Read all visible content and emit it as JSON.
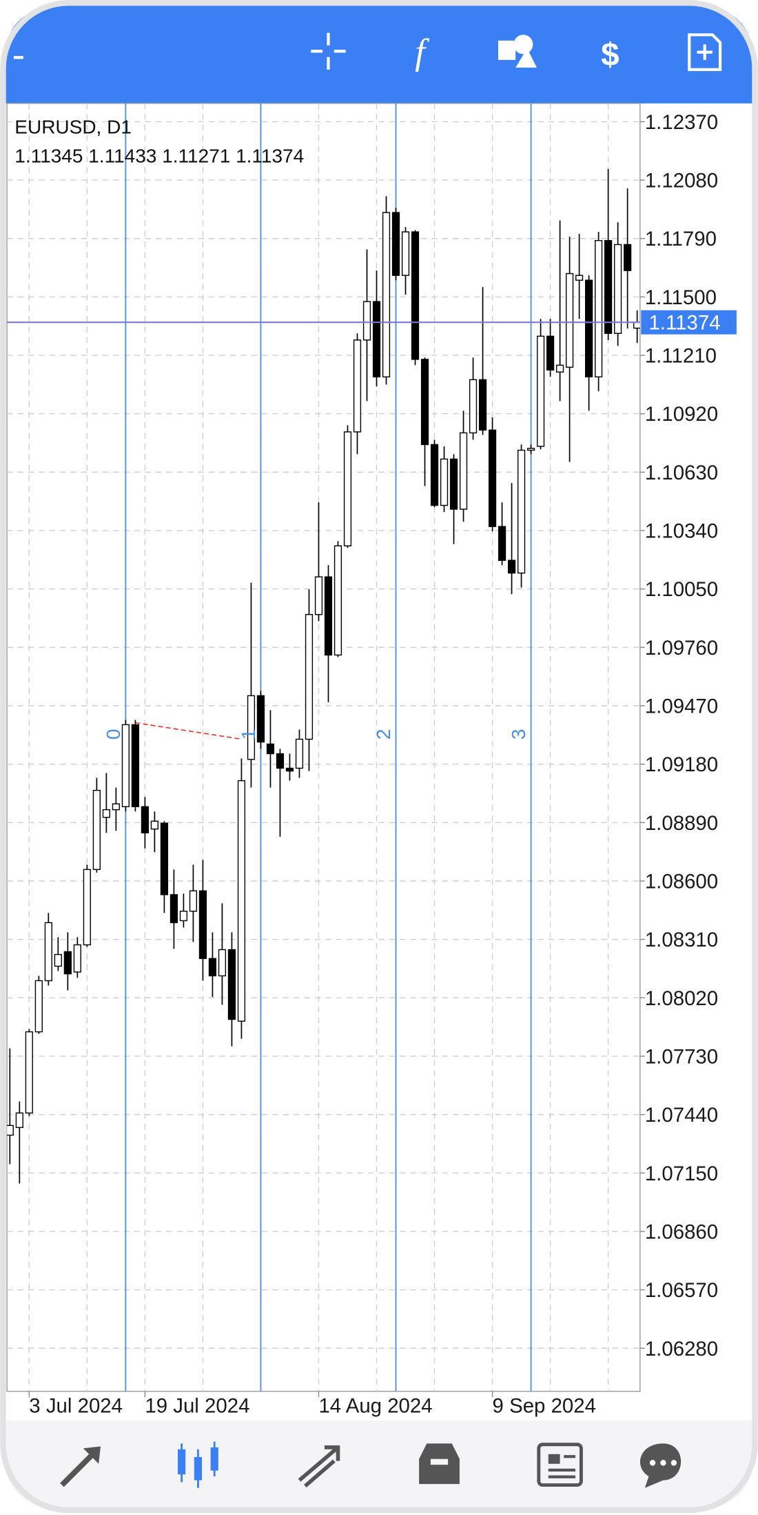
{
  "chart_data": {
    "type": "candlestick",
    "title": "EURUSD, D1",
    "categories": [
      null,
      null,
      "3 Jul 2024",
      null,
      null,
      null,
      null,
      null,
      null,
      null,
      null,
      null,
      null,
      null,
      "19 Jul 2024",
      null,
      null,
      null,
      null,
      null,
      null,
      null,
      null,
      null,
      null,
      null,
      null,
      null,
      null,
      null,
      null,
      null,
      "14 Aug 2024",
      null,
      null,
      null,
      null,
      null,
      null,
      null,
      null,
      null,
      null,
      null,
      null,
      null,
      null,
      null,
      null,
      null,
      "9 Sep 2024",
      null,
      null,
      null,
      null,
      null,
      null,
      null,
      null,
      null,
      null,
      null,
      null,
      null,
      null,
      null
    ],
    "open": [
      1.07338,
      1.07376,
      1.07448,
      1.07851,
      1.08105,
      1.08177,
      1.08249,
      1.08148,
      1.08283,
      1.08657,
      1.08916,
      1.08954,
      1.08969,
      1.09376,
      1.08969,
      1.08858,
      1.08887,
      1.08532,
      1.08403,
      1.0845,
      1.08551,
      1.08215,
      1.08129,
      1.08259,
      1.07904,
      1.09204,
      1.0952,
      1.0928,
      1.09232,
      1.0916,
      1.0916,
      1.09304,
      1.09923,
      1.1011,
      1.09722,
      1.10264,
      1.1083,
      1.11286,
      1.11477,
      1.11103,
      1.11919,
      1.11607,
      1.11823,
      1.1119,
      1.10767,
      1.10465,
      1.10695,
      1.10446,
      1.10825,
      1.11089,
      1.10839,
      1.1036,
      1.10192,
      1.10129,
      1.10739,
      1.10758,
      1.11305,
      1.11127,
      1.11151,
      1.11583,
      1.11583,
      1.11103,
      1.1178,
      1.11319,
      1.1176,
      1.11345
    ],
    "high": [
      1.07769,
      1.07505,
      1.07865,
      1.08129,
      1.08441,
      1.08321,
      1.08345,
      1.08321,
      1.08681,
      1.09112,
      1.09136,
      1.09064,
      1.094,
      1.094,
      1.09017,
      1.08945,
      1.08897,
      1.08657,
      1.08537,
      1.08681,
      1.08705,
      1.08345,
      1.08489,
      1.08345,
      1.09208,
      1.10081,
      1.09544,
      1.09448,
      1.09256,
      1.09232,
      1.09352,
      1.10048,
      1.1048,
      1.10168,
      1.10288,
      1.10863,
      1.11319,
      1.11736,
      1.11631,
      1.12,
      1.11943,
      1.11847,
      1.11832,
      1.11199,
      1.10791,
      1.10758,
      1.10719,
      1.10935,
      1.11199,
      1.11549,
      1.10902,
      1.1048,
      1.10576,
      1.10767,
      1.10767,
      1.11391,
      1.11391,
      1.1188,
      1.11799,
      1.11813,
      1.11607,
      1.11823,
      1.12135,
      1.11871,
      1.12039,
      1.11433
    ],
    "low": [
      1.07194,
      1.07098,
      1.07433,
      1.07841,
      1.08081,
      1.08153,
      1.08057,
      1.08119,
      1.08273,
      1.08642,
      1.08839,
      1.08849,
      1.08945,
      1.08945,
      1.08762,
      1.08743,
      1.08441,
      1.08263,
      1.08369,
      1.08297,
      1.08105,
      1.08024,
      1.07985,
      1.07779,
      1.07817,
      1.09064,
      1.09256,
      1.09064,
      1.0882,
      1.09098,
      1.09112,
      1.09146,
      1.0989,
      1.09487,
      1.09712,
      1.10254,
      1.10719,
      1.10983,
      1.11055,
      1.11065,
      1.11583,
      1.11511,
      1.11161,
      1.10561,
      1.10456,
      1.10432,
      1.10273,
      1.10384,
      1.10791,
      1.10815,
      1.10336,
      1.10168,
      1.10024,
      1.10057,
      1.10719,
      1.10743,
      1.11103,
      1.10983,
      1.10681,
      1.11391,
      1.10935,
      1.11031,
      1.11286,
      1.11257,
      1.11343,
      1.11271
    ],
    "close": [
      1.07386,
      1.07448,
      1.07851,
      1.08105,
      1.08393,
      1.08235,
      1.08139,
      1.08283,
      1.08657,
      1.0905,
      1.08954,
      1.08983,
      1.09376,
      1.08969,
      1.08839,
      1.08897,
      1.08532,
      1.08393,
      1.0845,
      1.08551,
      1.08215,
      1.08129,
      1.08259,
      1.07913,
      1.09098,
      1.0952,
      1.0929,
      1.09232,
      1.0916,
      1.09146,
      1.09304,
      1.09923,
      1.1011,
      1.09722,
      1.10264,
      1.1083,
      1.11286,
      1.11477,
      1.11103,
      1.11919,
      1.11607,
      1.11823,
      1.1119,
      1.10767,
      1.10465,
      1.10695,
      1.10446,
      1.10825,
      1.11089,
      1.10839,
      1.1036,
      1.10192,
      1.10129,
      1.10739,
      1.10748,
      1.11305,
      1.11137,
      1.11161,
      1.11616,
      1.11607,
      1.11103,
      1.1178,
      1.11319,
      1.1176,
      1.11631,
      1.11374
    ],
    "up_color": "#ffffff",
    "down_color": "#000000",
    "ylim": [
      1.06066,
      1.12461
    ],
    "yticks": [
      {
        "value": 1.1237,
        "label": "1.12370"
      },
      {
        "value": 1.1208,
        "label": "1.12080"
      },
      {
        "value": 1.1179,
        "label": "1.11790"
      },
      {
        "value": 1.115,
        "label": "1.11500"
      },
      {
        "value": 1.1121,
        "label": "1.11210"
      },
      {
        "value": 1.1092,
        "label": "1.10920"
      },
      {
        "value": 1.1063,
        "label": "1.10630"
      },
      {
        "value": 1.1034,
        "label": "1.10340"
      },
      {
        "value": 1.1005,
        "label": "1.10050"
      },
      {
        "value": 1.0976,
        "label": "1.09760"
      },
      {
        "value": 1.0947,
        "label": "1.09470"
      },
      {
        "value": 1.0918,
        "label": "1.09180"
      },
      {
        "value": 1.0889,
        "label": "1.08890"
      },
      {
        "value": 1.086,
        "label": "1.08600"
      },
      {
        "value": 1.0831,
        "label": "1.08310"
      },
      {
        "value": 1.0802,
        "label": "1.08020"
      },
      {
        "value": 1.0773,
        "label": "1.07730"
      },
      {
        "value": 1.0744,
        "label": "1.07440"
      },
      {
        "value": 1.0715,
        "label": "1.07150"
      },
      {
        "value": 1.0686,
        "label": "1.06860"
      },
      {
        "value": 1.0657,
        "label": "1.06570"
      },
      {
        "value": 1.0628,
        "label": "1.06280"
      }
    ],
    "grid": true,
    "time_zone_labels": [
      "0",
      "1",
      "2",
      "3"
    ]
  }
}
